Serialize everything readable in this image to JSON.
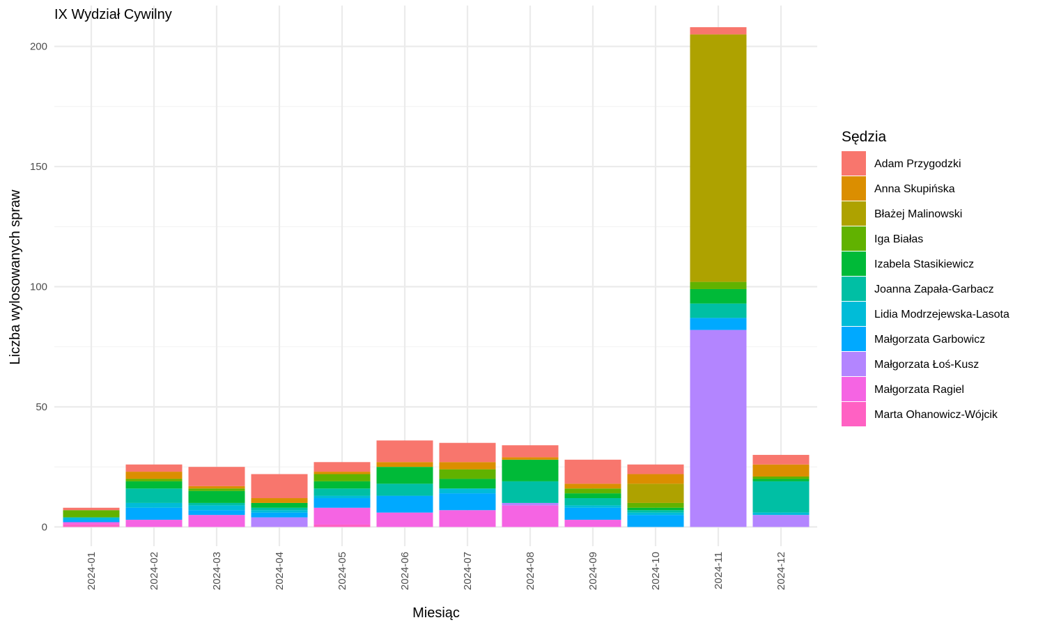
{
  "chart_data": {
    "type": "bar",
    "stacked": true,
    "title": "IX Wydział Cywilny",
    "xlabel": "Miesiąc",
    "ylabel": "Liczba wylosowanych spraw",
    "ylim": [
      -8,
      217
    ],
    "yticks": [
      0,
      50,
      100,
      150,
      200
    ],
    "grid": true,
    "legend_position": "right",
    "legend_title": "Sędzia",
    "categories": [
      "2024-01",
      "2024-02",
      "2024-03",
      "2024-04",
      "2024-05",
      "2024-06",
      "2024-07",
      "2024-08",
      "2024-09",
      "2024-10",
      "2024-11",
      "2024-12"
    ],
    "series": [
      {
        "name": "Marta Ohanowicz-Wójcik",
        "color": "#FF61C3",
        "values": [
          1,
          0,
          0,
          0,
          1,
          0,
          0,
          0,
          0,
          0,
          0,
          0
        ]
      },
      {
        "name": "Małgorzata Ragiel",
        "color": "#F564E3",
        "values": [
          1,
          3,
          5,
          0,
          7,
          6,
          7,
          9,
          3,
          0,
          0,
          0
        ]
      },
      {
        "name": "Małgorzata Łoś-Kusz",
        "color": "#B385FF",
        "values": [
          0,
          0,
          0,
          4,
          0,
          0,
          0,
          1,
          0,
          0,
          82,
          5
        ]
      },
      {
        "name": "Małgorzata Garbowicz",
        "color": "#00A9FF",
        "values": [
          1,
          5,
          2,
          2,
          4,
          7,
          7,
          0,
          5,
          5,
          5,
          0
        ]
      },
      {
        "name": "Lidia Modrzejewska-Lasota",
        "color": "#00BCD8",
        "values": [
          1,
          2,
          2,
          1,
          1,
          0,
          2,
          0,
          1,
          1,
          0,
          1
        ]
      },
      {
        "name": "Joanna Zapała-Garbacz",
        "color": "#00BFA4",
        "values": [
          0,
          6,
          1,
          1,
          3,
          5,
          0,
          9,
          3,
          1,
          6,
          13
        ]
      },
      {
        "name": "Izabela Stasikiewicz",
        "color": "#00BA38",
        "values": [
          0,
          3,
          5,
          2,
          3,
          7,
          4,
          9,
          2,
          1,
          6,
          1
        ]
      },
      {
        "name": "Iga Białas",
        "color": "#61B200",
        "values": [
          3,
          1,
          1,
          0,
          3,
          0,
          4,
          0,
          2,
          2,
          3,
          1
        ]
      },
      {
        "name": "Błażej Malinowski",
        "color": "#AEA200",
        "values": [
          0,
          0,
          0,
          0,
          0,
          0,
          0,
          0,
          0,
          8,
          103,
          0
        ]
      },
      {
        "name": "Anna Skupińska",
        "color": "#DB8E00",
        "values": [
          0,
          3,
          1,
          2,
          1,
          2,
          3,
          1,
          2,
          4,
          0,
          5
        ]
      },
      {
        "name": "Adam Przygodzki",
        "color": "#F8766D",
        "values": [
          1,
          3,
          8,
          10,
          4,
          9,
          8,
          5,
          10,
          4,
          3,
          4
        ]
      }
    ]
  }
}
